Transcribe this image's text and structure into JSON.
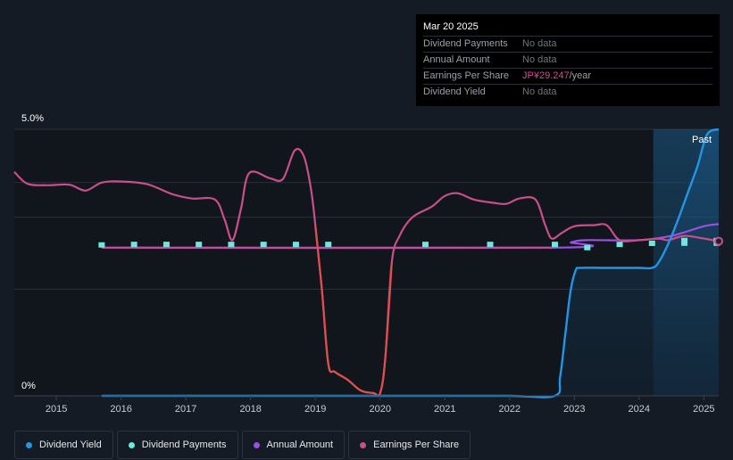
{
  "tooltip": {
    "date": "Mar 20 2025",
    "rows": [
      {
        "label": "Dividend Payments",
        "value": "No data"
      },
      {
        "label": "Annual Amount",
        "value": "No data"
      },
      {
        "label": "Earnings Per Share",
        "value": "JP¥29.247",
        "unit": "/year"
      },
      {
        "label": "Dividend Yield",
        "value": "No data"
      }
    ]
  },
  "chart_data": {
    "type": "line",
    "y_axis_labels": [
      "5.0%",
      "0%"
    ],
    "ylim": [
      0,
      5.0
    ],
    "x_ticks": [
      "2015",
      "2016",
      "2017",
      "2018",
      "2019",
      "2020",
      "2021",
      "2022",
      "2023",
      "2024",
      "2025"
    ],
    "xlim": [
      2014.35,
      2025.23
    ],
    "past_label": "Past",
    "forecast_start": 2024.22,
    "grid": true,
    "colors": {
      "dividend_yield": "#2394e6",
      "dividend_payments": "#6ee8dc",
      "annual_amount": "#9b51e0",
      "eps_pos": "#c94e8a",
      "eps_neg": "#e04d4d",
      "grid": "#2a313b"
    },
    "series": [
      {
        "name": "Dividend Yield",
        "key": "dividend_yield",
        "points": [
          [
            2015.7,
            0
          ],
          [
            2016,
            0
          ],
          [
            2017,
            0
          ],
          [
            2018,
            0
          ],
          [
            2019,
            0
          ],
          [
            2020,
            0
          ],
          [
            2021,
            0
          ],
          [
            2022,
            0
          ],
          [
            2022.7,
            0
          ],
          [
            2022.78,
            0.35
          ],
          [
            2022.86,
            1.15
          ],
          [
            2022.94,
            1.95
          ],
          [
            2023.02,
            2.35
          ],
          [
            2023.1,
            2.4
          ],
          [
            2023.5,
            2.4
          ],
          [
            2024.0,
            2.4
          ],
          [
            2024.2,
            2.4
          ],
          [
            2024.3,
            2.5
          ],
          [
            2024.45,
            2.85
          ],
          [
            2024.6,
            3.3
          ],
          [
            2024.75,
            3.8
          ],
          [
            2024.9,
            4.3
          ],
          [
            2025.05,
            4.9
          ],
          [
            2025.23,
            5.0
          ]
        ]
      },
      {
        "name": "Dividend Payments",
        "key": "dividend_payments",
        "points": [
          [
            2015.7,
            2.83
          ],
          [
            2016.2,
            2.84
          ],
          [
            2016.7,
            2.84
          ],
          [
            2017.2,
            2.84
          ],
          [
            2017.7,
            2.84
          ],
          [
            2018.2,
            2.84
          ],
          [
            2018.7,
            2.84
          ],
          [
            2019.2,
            2.84
          ],
          [
            2020.7,
            2.84
          ],
          [
            2021.7,
            2.84
          ],
          [
            2022.7,
            2.84
          ],
          [
            2023.2,
            2.78
          ],
          [
            2023.7,
            2.84
          ],
          [
            2024.2,
            2.86
          ],
          [
            2024.7,
            2.88
          ],
          [
            2025.2,
            2.88
          ]
        ]
      },
      {
        "name": "Annual Amount",
        "key": "annual_amount",
        "points": [
          [
            2015.7,
            2.78
          ],
          [
            2022.7,
            2.78
          ],
          [
            2022.95,
            2.88
          ],
          [
            2023.2,
            2.92
          ],
          [
            2024.0,
            2.92
          ],
          [
            2024.5,
            3.0
          ],
          [
            2025.0,
            3.18
          ],
          [
            2025.23,
            3.22
          ]
        ]
      },
      {
        "name": "Earnings Per Share",
        "key": "eps",
        "points": [
          [
            2014.35,
            4.2
          ],
          [
            2014.55,
            3.98
          ],
          [
            2014.85,
            3.95
          ],
          [
            2015.2,
            3.96
          ],
          [
            2015.45,
            3.85
          ],
          [
            2015.7,
            4.0
          ],
          [
            2016.0,
            4.02
          ],
          [
            2016.4,
            3.97
          ],
          [
            2016.8,
            3.78
          ],
          [
            2017.1,
            3.7
          ],
          [
            2017.45,
            3.68
          ],
          [
            2017.6,
            3.3
          ],
          [
            2017.72,
            2.92
          ],
          [
            2017.85,
            3.5
          ],
          [
            2017.98,
            4.18
          ],
          [
            2018.3,
            4.08
          ],
          [
            2018.5,
            4.07
          ],
          [
            2018.68,
            4.6
          ],
          [
            2018.82,
            4.5
          ],
          [
            2018.93,
            3.9
          ],
          [
            2019.0,
            3.2
          ],
          [
            2019.1,
            2.0
          ],
          [
            2019.2,
            0.6
          ],
          [
            2019.3,
            0.45
          ],
          [
            2019.5,
            0.3
          ],
          [
            2019.7,
            0.1
          ],
          [
            2019.9,
            0.05
          ],
          [
            2020.0,
            0.05
          ],
          [
            2020.08,
            0.7
          ],
          [
            2020.18,
            2.5
          ],
          [
            2020.3,
            3.0
          ],
          [
            2020.5,
            3.35
          ],
          [
            2020.8,
            3.55
          ],
          [
            2021.0,
            3.75
          ],
          [
            2021.2,
            3.8
          ],
          [
            2021.45,
            3.68
          ],
          [
            2021.75,
            3.62
          ],
          [
            2021.95,
            3.6
          ],
          [
            2022.15,
            3.7
          ],
          [
            2022.4,
            3.68
          ],
          [
            2022.55,
            3.2
          ],
          [
            2022.65,
            2.95
          ],
          [
            2022.8,
            3.05
          ],
          [
            2023.0,
            3.18
          ],
          [
            2023.3,
            3.2
          ],
          [
            2023.5,
            3.2
          ],
          [
            2023.7,
            2.92
          ],
          [
            2024.0,
            2.92
          ],
          [
            2024.3,
            2.95
          ],
          [
            2024.45,
            2.92
          ],
          [
            2024.7,
            3.0
          ],
          [
            2025.0,
            2.95
          ],
          [
            2025.23,
            2.9
          ]
        ]
      }
    ]
  },
  "legend": [
    {
      "label": "Dividend Yield",
      "color": "#2394e6"
    },
    {
      "label": "Dividend Payments",
      "color": "#6ee8dc"
    },
    {
      "label": "Annual Amount",
      "color": "#9b51e0"
    },
    {
      "label": "Earnings Per Share",
      "color": "#c94e8a"
    }
  ]
}
